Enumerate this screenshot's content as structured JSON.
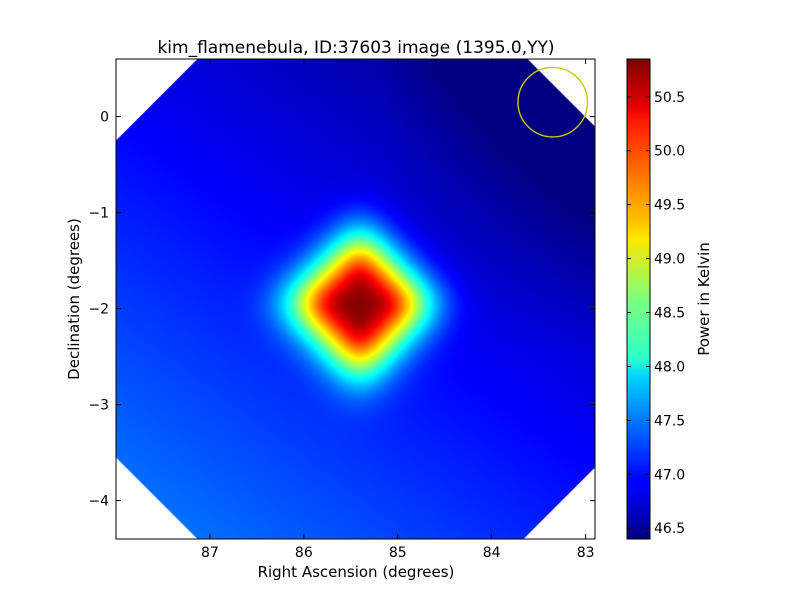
{
  "chart_data": {
    "type": "heatmap",
    "title": "kim_flamenebula, ID:37603 image (1395.0,YY)",
    "xlabel": "Right Ascension (degrees)",
    "ylabel": "Declination (degrees)",
    "xlim": [
      88.0,
      82.9
    ],
    "ylim": [
      -4.4,
      0.6
    ],
    "x_ticks": [
      {
        "value": 87,
        "label": "87"
      },
      {
        "value": 86,
        "label": "86"
      },
      {
        "value": 85,
        "label": "85"
      },
      {
        "value": 84,
        "label": "84"
      },
      {
        "value": 83,
        "label": "83"
      }
    ],
    "y_ticks": [
      {
        "value": 0,
        "label": "0"
      },
      {
        "value": -1,
        "label": "−1"
      },
      {
        "value": -2,
        "label": "−2"
      },
      {
        "value": -3,
        "label": "−3"
      },
      {
        "value": -4,
        "label": "−4"
      }
    ],
    "colorbar": {
      "label": "Power in Kelvin",
      "colormap": "jet",
      "vmin": 46.4,
      "vmax": 50.85,
      "ticks": [
        {
          "value": 46.5,
          "label": "46.5"
        },
        {
          "value": 47.0,
          "label": "47.0"
        },
        {
          "value": 47.5,
          "label": "47.5"
        },
        {
          "value": 48.0,
          "label": "48.0"
        },
        {
          "value": 48.5,
          "label": "48.5"
        },
        {
          "value": 49.0,
          "label": "49.0"
        },
        {
          "value": 49.5,
          "label": "49.5"
        },
        {
          "value": 50.0,
          "label": "50.0"
        },
        {
          "value": 50.5,
          "label": "50.5"
        }
      ]
    },
    "source_peak": {
      "ra": 85.4,
      "dec": -1.95,
      "value": 50.85
    },
    "beam_marker": {
      "ra": 83.35,
      "dec": 0.15,
      "radius_deg": 0.37,
      "color": "#c8c800"
    }
  }
}
